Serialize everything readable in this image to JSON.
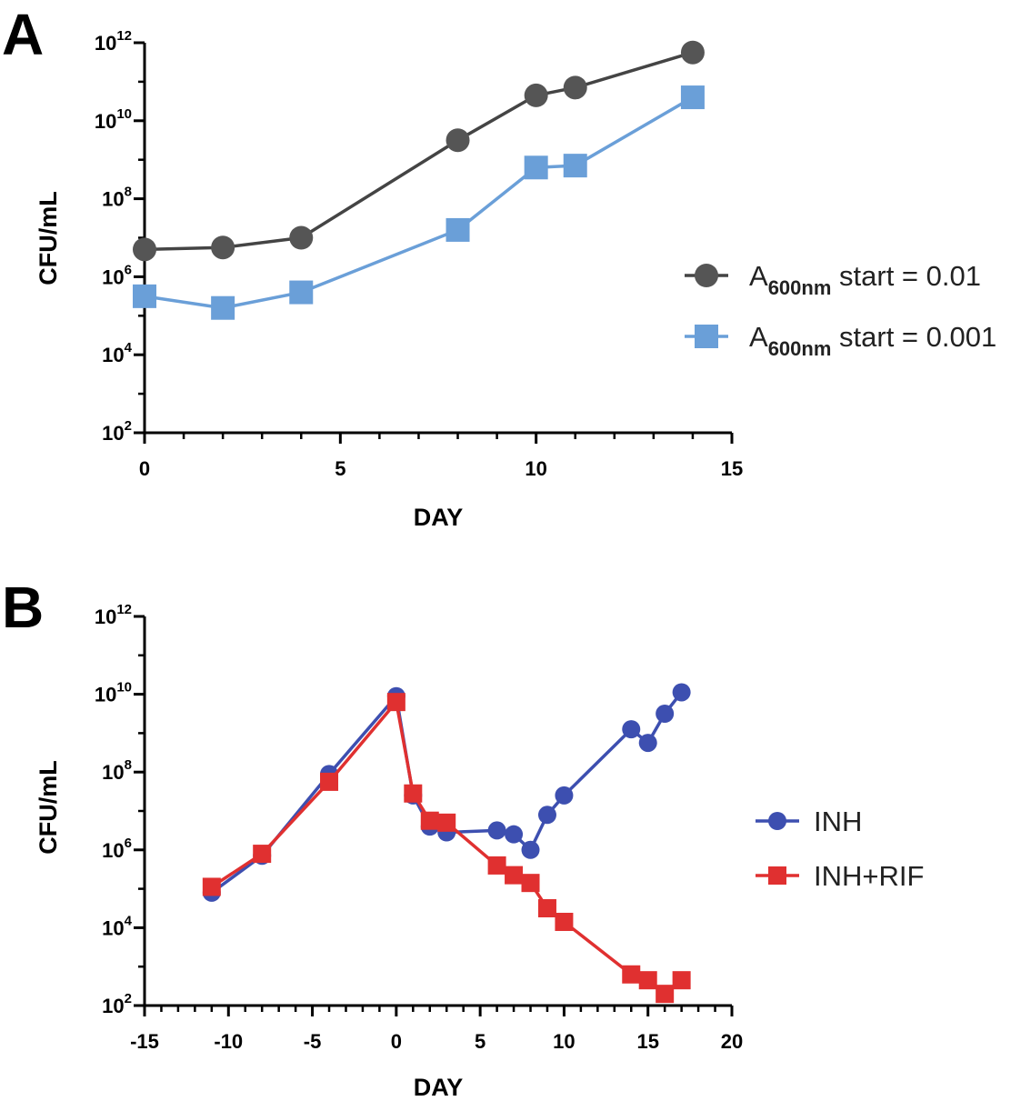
{
  "chart_data": [
    {
      "panel": "A",
      "type": "line",
      "xlabel": "DAY",
      "ylabel": "CFU/mL",
      "yscale": "log",
      "xlim": [
        0,
        15
      ],
      "ylim_exp": [
        2,
        12
      ],
      "x_ticks": [
        0,
        5,
        10,
        15
      ],
      "y_ticks": [
        {
          "exp": 2,
          "base": "10",
          "pow": "2"
        },
        {
          "exp": 4,
          "base": "10",
          "pow": "4"
        },
        {
          "exp": 6,
          "base": "10",
          "pow": "6"
        },
        {
          "exp": 8,
          "base": "10",
          "pow": "8"
        },
        {
          "exp": 10,
          "base": "10",
          "pow": "10"
        },
        {
          "exp": 12,
          "base": "10",
          "pow": "12"
        }
      ],
      "series": [
        {
          "name": "A600nm start = 0.01",
          "label_main": "A",
          "label_sub": "600nm",
          "label_rest": " start = 0.01",
          "marker": "circle",
          "color": "#555555",
          "line_color": "#444444",
          "x": [
            0,
            2,
            4,
            8,
            10,
            11,
            14
          ],
          "y_exp": [
            6.7,
            6.75,
            7.0,
            9.5,
            10.65,
            10.85,
            11.75
          ]
        },
        {
          "name": "A600nm start = 0.001",
          "label_main": "A",
          "label_sub": "600nm",
          "label_rest": " start = 0.001",
          "marker": "square",
          "color": "#6a9fd8",
          "line_color": "#6a9fd8",
          "x": [
            0,
            2,
            4,
            8,
            10,
            11,
            14
          ],
          "y_exp": [
            5.5,
            5.2,
            5.6,
            7.2,
            8.8,
            8.85,
            10.6
          ]
        }
      ]
    },
    {
      "panel": "B",
      "type": "line",
      "xlabel": "DAY",
      "ylabel": "CFU/mL",
      "yscale": "log",
      "xlim": [
        -15,
        20
      ],
      "ylim_exp": [
        2,
        12
      ],
      "x_ticks": [
        -15,
        -10,
        -5,
        0,
        5,
        10,
        15,
        20
      ],
      "y_ticks": [
        {
          "exp": 2,
          "base": "10",
          "pow": "2"
        },
        {
          "exp": 4,
          "base": "10",
          "pow": "4"
        },
        {
          "exp": 6,
          "base": "10",
          "pow": "6"
        },
        {
          "exp": 8,
          "base": "10",
          "pow": "8"
        },
        {
          "exp": 10,
          "base": "10",
          "pow": "10"
        },
        {
          "exp": 12,
          "base": "10",
          "pow": "12"
        }
      ],
      "series": [
        {
          "name": "INH",
          "marker": "circle",
          "color": "#3d4fb0",
          "line_color": "#3d4fb0",
          "x": [
            -11,
            -8,
            -4,
            0,
            1,
            2,
            3,
            6,
            7,
            8,
            9,
            10,
            14,
            15,
            16,
            17
          ],
          "y_exp": [
            4.9,
            5.85,
            7.95,
            9.95,
            7.4,
            6.6,
            6.45,
            6.5,
            6.4,
            6.0,
            6.9,
            7.4,
            9.1,
            8.75,
            9.5,
            10.05
          ]
        },
        {
          "name": "INH+RIF",
          "marker": "square",
          "color": "#e03030",
          "line_color": "#e03030",
          "x": [
            -11,
            -8,
            -4,
            0,
            1,
            2,
            3,
            6,
            7,
            8,
            9,
            10,
            14,
            15,
            16,
            17
          ],
          "y_exp": [
            5.05,
            5.9,
            7.75,
            9.8,
            7.45,
            6.75,
            6.7,
            5.6,
            5.35,
            5.15,
            4.5,
            4.15,
            2.8,
            2.65,
            2.3,
            2.65
          ]
        }
      ]
    }
  ]
}
